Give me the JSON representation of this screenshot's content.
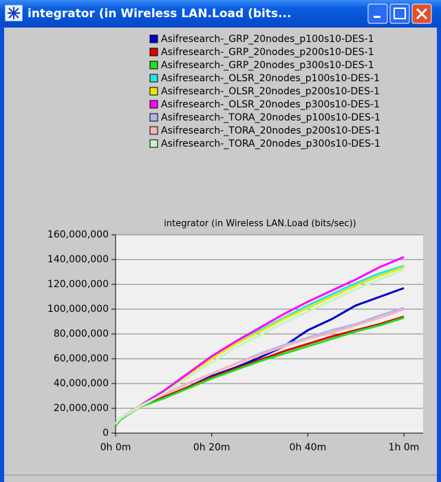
{
  "window": {
    "title": "integrator (in Wireless LAN.Load (bits..."
  },
  "chart_data": {
    "type": "line",
    "title": "integrator (in Wireless LAN.Load (bits/sec))",
    "x": [
      0,
      1,
      5,
      10,
      15,
      20,
      25,
      30,
      35,
      40,
      45,
      50,
      55,
      60
    ],
    "xlim": [
      0,
      64
    ],
    "xticks": [
      {
        "value": 0,
        "label": "0h 0m"
      },
      {
        "value": 20,
        "label": "0h 20m"
      },
      {
        "value": 40,
        "label": "0h 40m"
      },
      {
        "value": 60,
        "label": "1h 0m"
      }
    ],
    "ylim": [
      0,
      160000000
    ],
    "yticks": [
      {
        "value": 0,
        "label": "0"
      },
      {
        "value": 20000000,
        "label": "20,000,000"
      },
      {
        "value": 40000000,
        "label": "40,000,000"
      },
      {
        "value": 60000000,
        "label": "60,000,000"
      },
      {
        "value": 80000000,
        "label": "80,000,000"
      },
      {
        "value": 100000000,
        "label": "100,000,000"
      },
      {
        "value": 120000000,
        "label": "120,000,000"
      },
      {
        "value": 140000000,
        "label": "140,000,000"
      },
      {
        "value": 160000000,
        "label": "160,000,000"
      }
    ],
    "grid": true,
    "series": [
      {
        "name": "Asifresearch-_GRP_20nodes_p100s10-DES-1",
        "color": "#0000c8",
        "values": [
          6000000,
          11000000,
          21000000,
          29000000,
          37000000,
          46000000,
          53000000,
          61000000,
          70000000,
          83000000,
          92000000,
          103000000,
          110000000,
          117000000
        ]
      },
      {
        "name": "Asifresearch-_GRP_20nodes_p200s10-DES-1",
        "color": "#e00000",
        "values": [
          6000000,
          11000000,
          21000000,
          29000000,
          37000000,
          45000000,
          52000000,
          59000000,
          66000000,
          72000000,
          78000000,
          83000000,
          88000000,
          94000000
        ]
      },
      {
        "name": "Asifresearch-_GRP_20nodes_p300s10-DES-1",
        "color": "#20e020",
        "values": [
          6000000,
          11000000,
          21000000,
          28000000,
          36000000,
          44000000,
          51000000,
          58000000,
          64000000,
          70000000,
          76000000,
          82000000,
          87000000,
          93000000
        ]
      },
      {
        "name": "Asifresearch-_OLSR_20nodes_p100s10-DES-1",
        "color": "#20e8e8",
        "values": [
          8000000,
          12000000,
          22000000,
          34000000,
          48000000,
          62000000,
          73000000,
          83000000,
          93000000,
          103000000,
          112000000,
          121000000,
          129000000,
          135000000
        ]
      },
      {
        "name": "Asifresearch-_OLSR_20nodes_p200s10-DES-1",
        "color": "#e8e800",
        "values": [
          8000000,
          12000000,
          22000000,
          33000000,
          47000000,
          60000000,
          72000000,
          82000000,
          92000000,
          101000000,
          110000000,
          119000000,
          127000000,
          134000000
        ]
      },
      {
        "name": "Asifresearch-_OLSR_20nodes_p300s10-DES-1",
        "color": "#ff00ff",
        "values": [
          8000000,
          12000000,
          22000000,
          34000000,
          48000000,
          62000000,
          74000000,
          85000000,
          96000000,
          106000000,
          115000000,
          124000000,
          134000000,
          142000000
        ]
      },
      {
        "name": "Asifresearch-_TORA_20nodes_p100s10-DES-1",
        "color": "#b0b4f4",
        "values": [
          7000000,
          12000000,
          22000000,
          31000000,
          40000000,
          48000000,
          56000000,
          64000000,
          71000000,
          77000000,
          83000000,
          88000000,
          95000000,
          101000000
        ]
      },
      {
        "name": "Asifresearch-_TORA_20nodes_p200s10-DES-1",
        "color": "#f8b4b4",
        "values": [
          7000000,
          12000000,
          22000000,
          31000000,
          40000000,
          48000000,
          56000000,
          63000000,
          70000000,
          76000000,
          81000000,
          87000000,
          93000000,
          100000000
        ]
      },
      {
        "name": "Asifresearch-_TORA_20nodes_p300s10-DES-1",
        "color": "#c4f4c4",
        "values": [
          8000000,
          12000000,
          21000000,
          32000000,
          45000000,
          57000000,
          69000000,
          79000000,
          89000000,
          98000000,
          107000000,
          116000000,
          124000000,
          132000000
        ]
      }
    ]
  }
}
